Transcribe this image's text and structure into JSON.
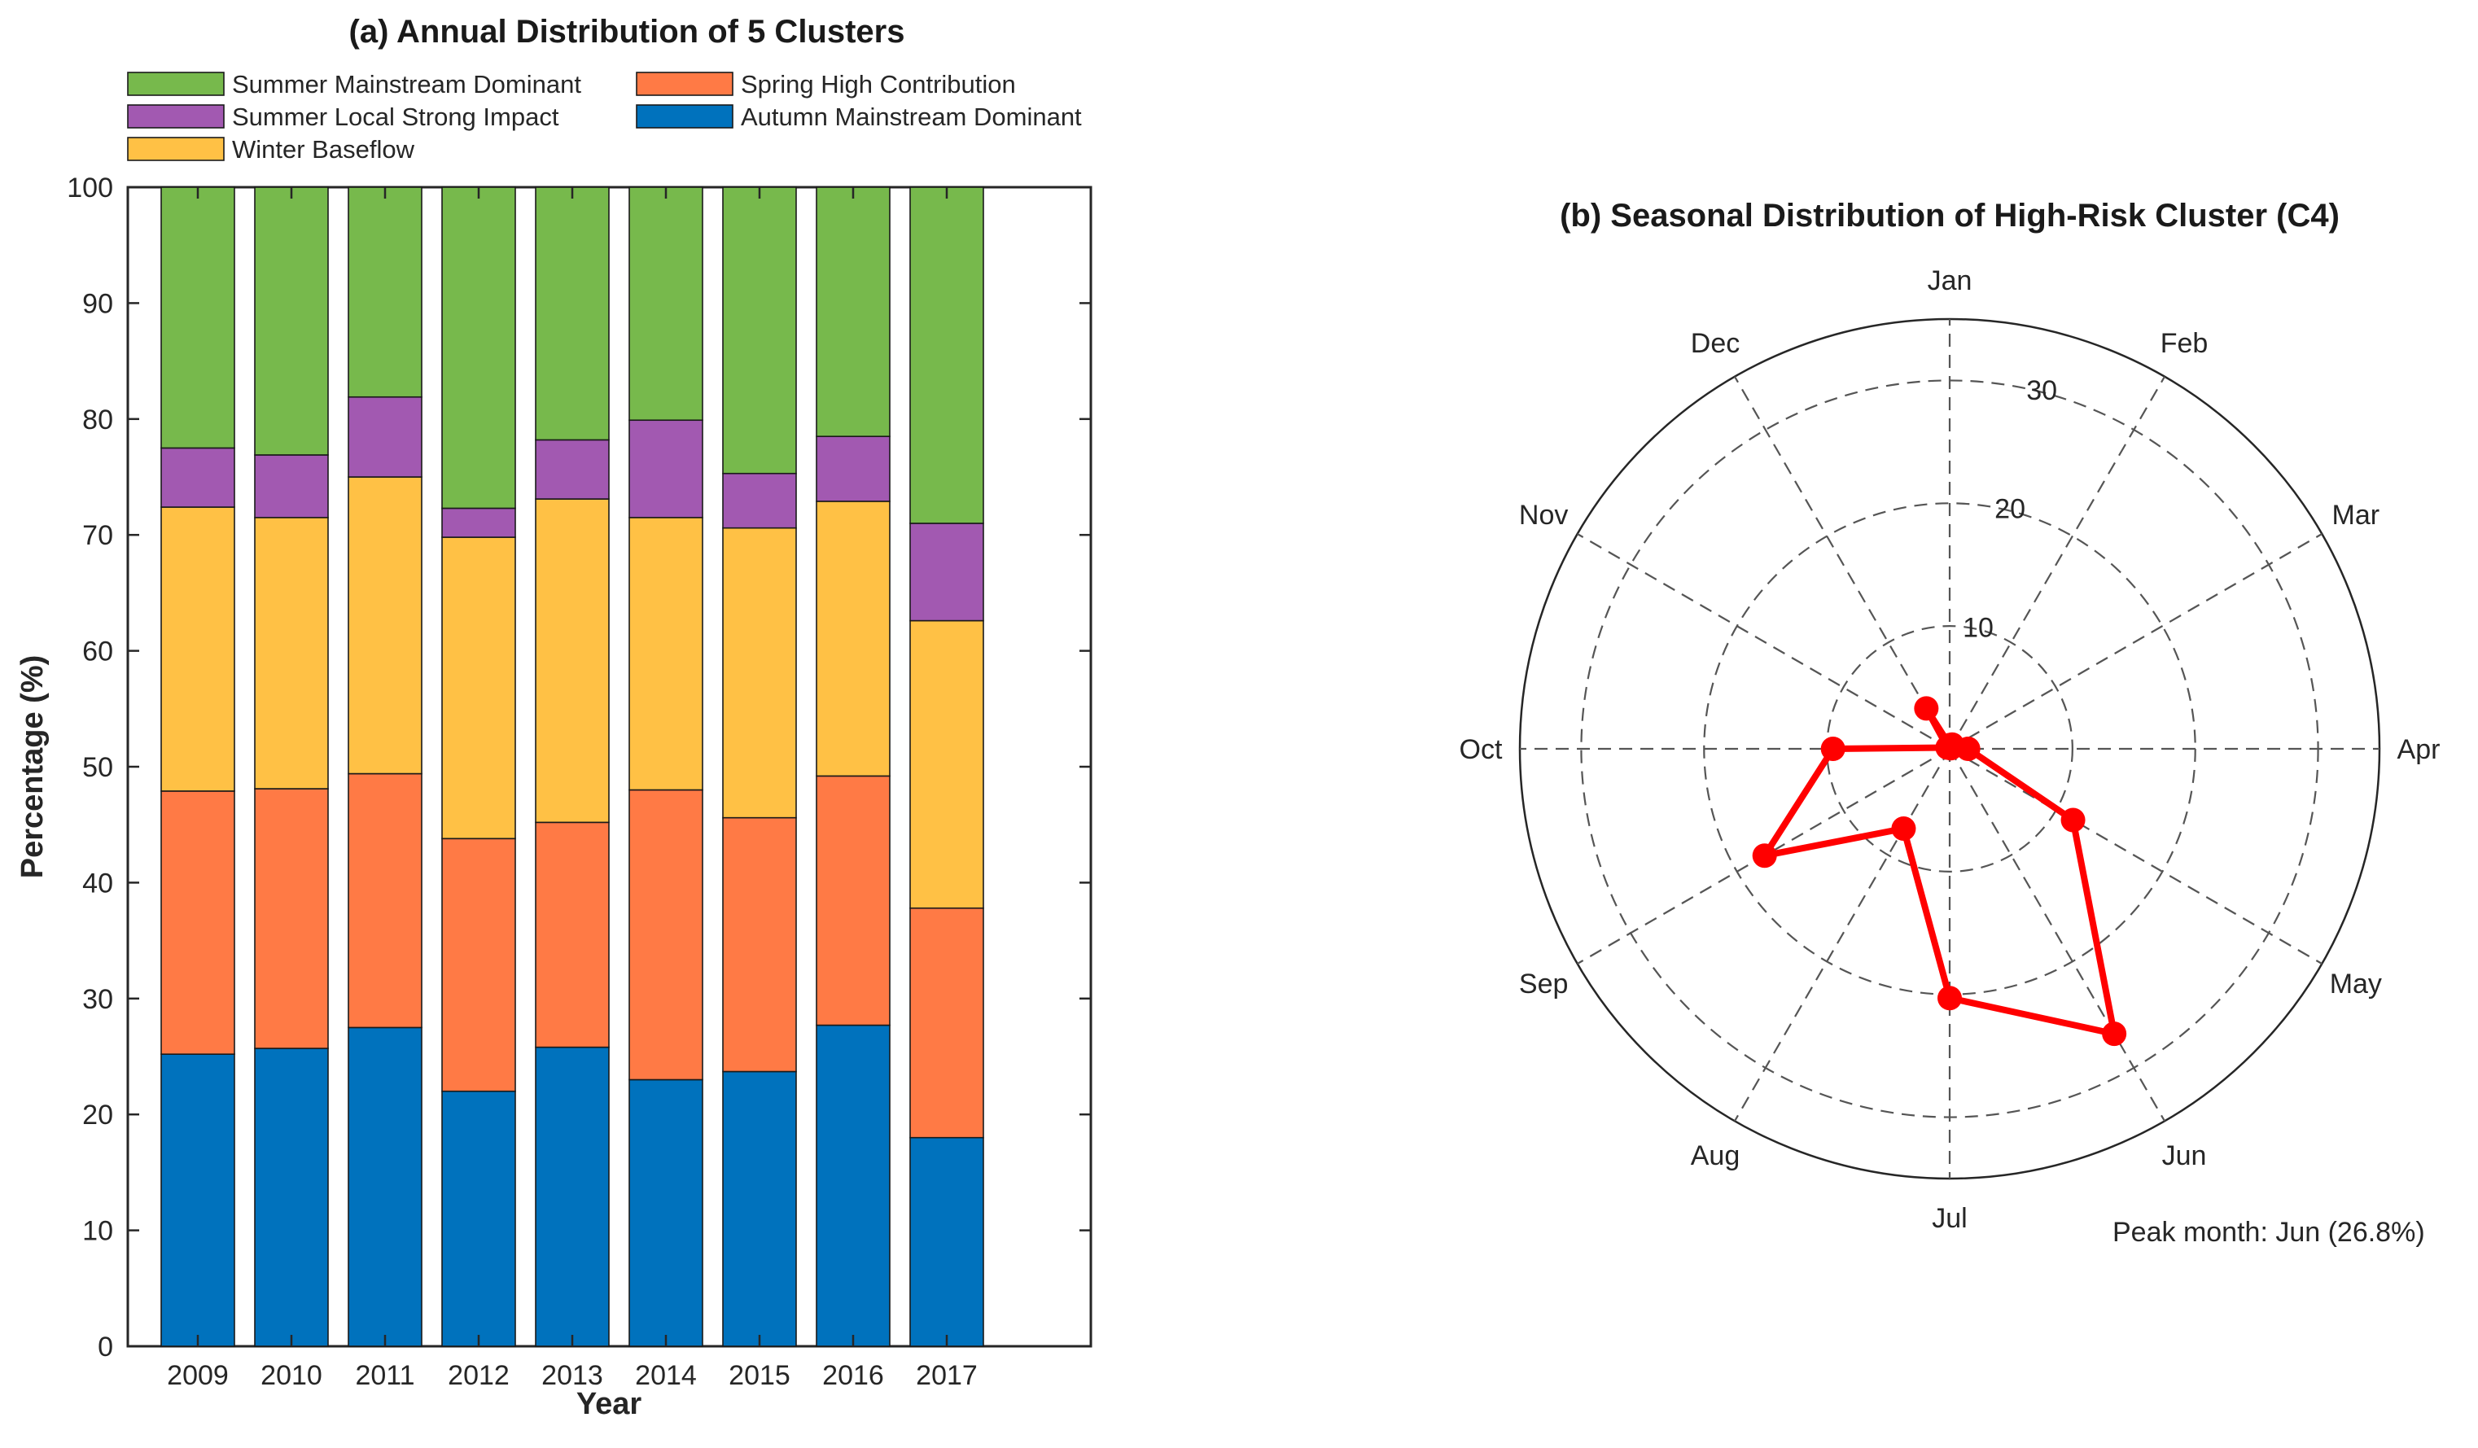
{
  "chart_data": [
    {
      "type": "bar",
      "stacked": true,
      "title": "(a) Annual Distribution of 5 Clusters",
      "xlabel": "Year",
      "ylabel": "Percentage (%)",
      "ylim": [
        0,
        100
      ],
      "yticks": [
        0,
        10,
        20,
        30,
        40,
        50,
        60,
        70,
        80,
        90,
        100
      ],
      "categories": [
        "2009",
        "2010",
        "2011",
        "2012",
        "2013",
        "2014",
        "2015",
        "2016",
        "2017"
      ],
      "series": [
        {
          "name": "Autumn Mainstream Dominant",
          "color": "#0072BD",
          "values": [
            25.2,
            25.7,
            27.5,
            22.0,
            25.8,
            23.0,
            23.7,
            27.7,
            18.0
          ]
        },
        {
          "name": "Spring High Contribution",
          "color": "#FF7A45",
          "values": [
            22.7,
            22.4,
            21.9,
            21.8,
            19.4,
            25.0,
            21.9,
            21.5,
            19.8
          ]
        },
        {
          "name": "Winter Baseflow",
          "color": "#FFC145",
          "values": [
            24.5,
            23.4,
            25.6,
            26.0,
            27.9,
            23.5,
            25.0,
            23.7,
            24.8
          ]
        },
        {
          "name": "Summer Local Strong Impact",
          "color": "#A259B1",
          "values": [
            5.1,
            5.4,
            6.9,
            2.5,
            5.1,
            8.4,
            4.7,
            5.6,
            8.4
          ]
        },
        {
          "name": "Summer Mainstream Dominant",
          "color": "#77B94C",
          "values": [
            22.5,
            23.1,
            18.1,
            27.7,
            21.8,
            20.1,
            24.7,
            21.5,
            29.0
          ]
        }
      ],
      "legend": {
        "placement": "top",
        "order": [
          "Summer Mainstream Dominant",
          "Spring High Contribution",
          "Summer Local Strong Impact",
          "Autumn Mainstream Dominant",
          "Winter Baseflow"
        ]
      },
      "grid": false
    },
    {
      "type": "polar",
      "title": "(b) Seasonal Distribution of High-Risk Cluster (C4)",
      "categories": [
        "Jan",
        "Feb",
        "Mar",
        "Apr",
        "May",
        "Jun",
        "Jul",
        "Aug",
        "Sep",
        "Oct",
        "Nov",
        "Dec"
      ],
      "values": [
        0.3,
        0.4,
        0.1,
        1.5,
        11.6,
        26.8,
        20.3,
        7.5,
        17.4,
        9.5,
        0.2,
        3.8
      ],
      "rlim": [
        0,
        35
      ],
      "rticks": [
        10,
        20,
        30
      ],
      "rtick_labels": [
        "10",
        "20",
        "30"
      ],
      "line_color": "#FF0000",
      "grid": true,
      "annotation": "Peak month: Jun (26.8%)"
    }
  ]
}
